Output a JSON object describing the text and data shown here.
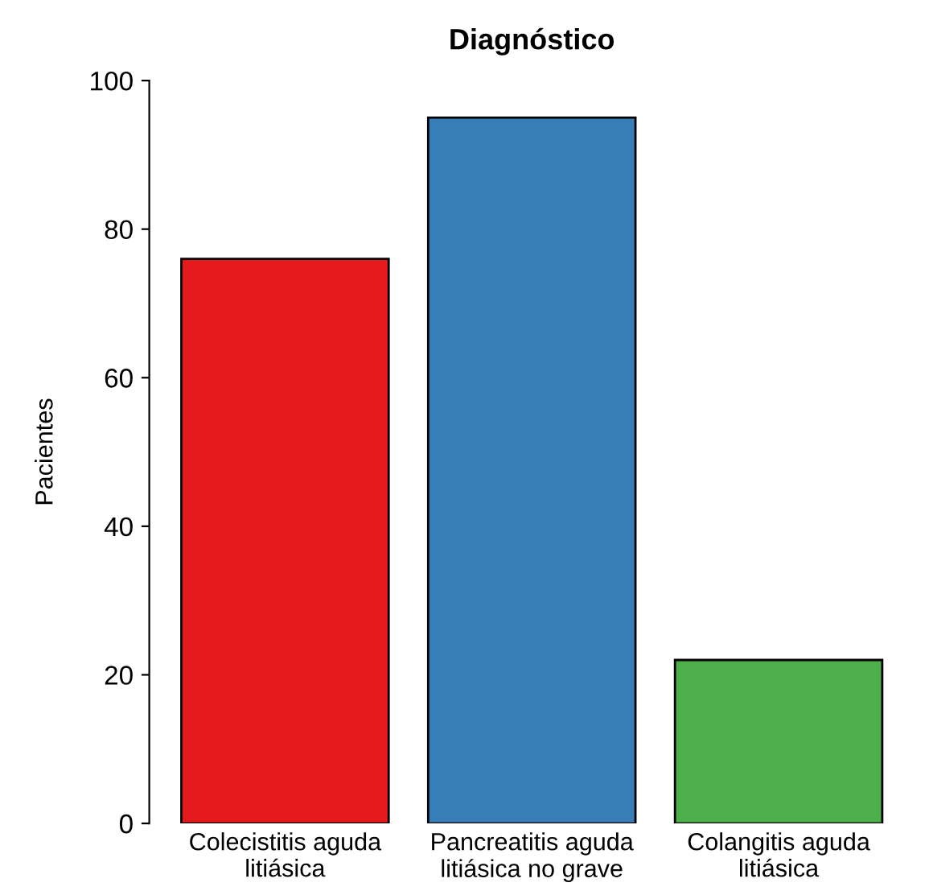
{
  "chart_data": {
    "type": "bar",
    "title": "Diagnóstico",
    "ylabel": "Pacientes",
    "categories": [
      "Colecistitis aguda\nlitiásica",
      "Pancreatitis aguda\nlitiásica no grave",
      "Colangitis aguda\nlitiásica"
    ],
    "values": [
      76,
      95,
      22
    ],
    "colors": [
      "#e41a1c",
      "#377eb8",
      "#4daf4a"
    ],
    "ylim": [
      0,
      100
    ],
    "yticks": [
      0,
      20,
      40,
      60,
      80,
      100
    ],
    "grid": false,
    "legend": false
  }
}
